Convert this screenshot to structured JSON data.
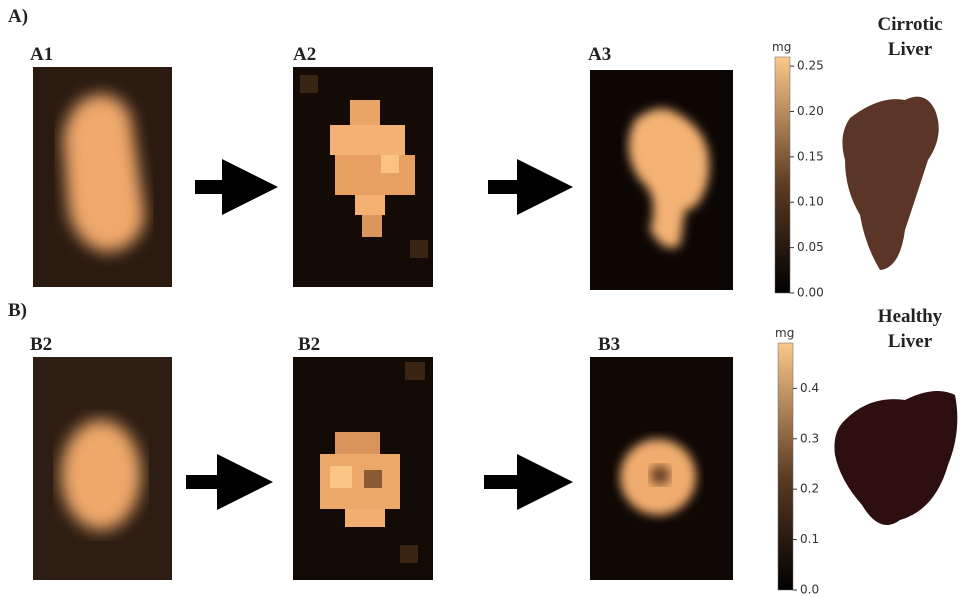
{
  "figure": {
    "rows": [
      {
        "label": "A)",
        "panels": [
          "A1",
          "A2",
          "A3"
        ],
        "liver": [
          "Cirrotic",
          "Liver"
        ],
        "colorbar": {
          "unit": "mg",
          "lim": [
            0,
            0.26
          ],
          "ticks": [
            {
              "value": 0,
              "label": "0.00"
            },
            0.05,
            {
              "value": 0.1,
              "label": "0.10"
            },
            0.15,
            {
              "value": 0.2,
              "label": "0.20"
            },
            0.25
          ]
        }
      },
      {
        "label": "B)",
        "panels": [
          "B2",
          "B2",
          "B3"
        ],
        "liver": [
          "Healthy",
          "Liver"
        ],
        "colorbar": {
          "unit": "mg",
          "lim": [
            0,
            0.49
          ],
          "ticks": [
            {
              "value": 0,
              "label": "0.0"
            },
            0.1,
            0.2,
            0.3,
            0.4
          ]
        }
      }
    ]
  }
}
